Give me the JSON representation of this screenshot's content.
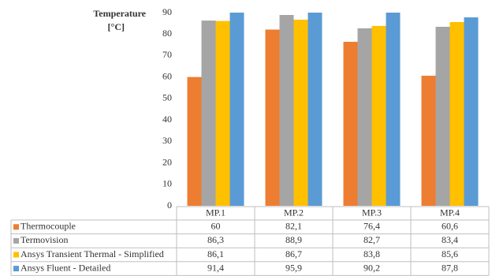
{
  "chart_data": {
    "type": "bar",
    "ylabel": [
      "Temperature",
      "[°C]"
    ],
    "categories": [
      "MP.1",
      "MP.2",
      "MP.3",
      "MP.4"
    ],
    "series": [
      {
        "name": "Thermocouple",
        "color": "#ed7d31",
        "values": [
          60,
          82.1,
          76.4,
          60.6
        ],
        "value_labels": [
          "60",
          "82,1",
          "76,4",
          "60,6"
        ]
      },
      {
        "name": "Termovision",
        "color": "#a5a5a5",
        "values": [
          86.3,
          88.9,
          82.7,
          83.4
        ],
        "value_labels": [
          "86,3",
          "88,9",
          "82,7",
          "83,4"
        ]
      },
      {
        "name": "Ansys Transient Thermal - Simplified",
        "color": "#ffc000",
        "values": [
          86.1,
          86.7,
          83.8,
          85.6
        ],
        "value_labels": [
          "86,1",
          "86,7",
          "83,8",
          "85,6"
        ]
      },
      {
        "name": "Ansys Fluent - Detailed",
        "color": "#5b9bd5",
        "values": [
          91.4,
          95.9,
          90.2,
          87.8
        ],
        "value_labels": [
          "91,4",
          "95,9",
          "90,2",
          "87,8"
        ]
      }
    ],
    "ylim": [
      0,
      90
    ],
    "yticks": [
      0,
      10,
      20,
      30,
      40,
      50,
      60,
      70,
      80,
      90
    ]
  }
}
